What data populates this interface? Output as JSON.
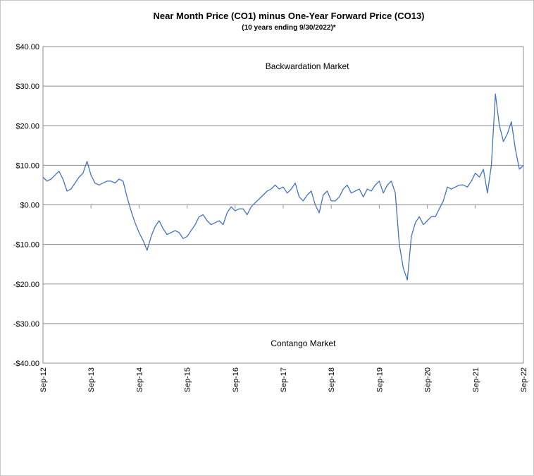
{
  "chart_data": {
    "type": "line",
    "title": "Near Month Price (CO1) minus One-Year Forward Price (CO13)",
    "subtitle": "(10 years ending  9/30/2022)*",
    "xlabel": "",
    "ylabel": "",
    "ylim": [
      -40,
      40
    ],
    "y_ticks": [
      40,
      30,
      20,
      10,
      0,
      -10,
      -20,
      -30,
      -40
    ],
    "y_tick_labels": [
      "$40.00",
      "$30.00",
      "$20.00",
      "$10.00",
      "$0.00",
      "-$10.00",
      "-$20.00",
      "-$30.00",
      "-$40.00"
    ],
    "x_range": [
      "2012-09",
      "2022-09"
    ],
    "x_ticks": [
      "2012-09",
      "2013-09",
      "2014-09",
      "2015-09",
      "2016-09",
      "2017-09",
      "2018-09",
      "2019-09",
      "2020-09",
      "2021-09",
      "2022-09"
    ],
    "x_tick_labels": [
      "Sep-12",
      "Sep-13",
      "Sep-14",
      "Sep-15",
      "Sep-16",
      "Sep-17",
      "Sep-18",
      "Sep-19",
      "Sep-20",
      "Sep-21",
      "Sep-22"
    ],
    "grid": true,
    "annotations": [
      {
        "text": "Backwardation Market",
        "x": "2018-03",
        "y": 35
      },
      {
        "text": "Contango Market",
        "x": "2018-02",
        "y": -35
      }
    ],
    "series": [
      {
        "color": "#4472c4",
        "x": [
          "2012-09",
          "2012-10",
          "2012-11",
          "2012-12",
          "2013-01",
          "2013-02",
          "2013-03",
          "2013-04",
          "2013-05",
          "2013-06",
          "2013-07",
          "2013-08",
          "2013-09",
          "2013-10",
          "2013-11",
          "2013-12",
          "2014-01",
          "2014-02",
          "2014-03",
          "2014-04",
          "2014-05",
          "2014-06",
          "2014-07",
          "2014-08",
          "2014-09",
          "2014-10",
          "2014-11",
          "2014-12",
          "2015-01",
          "2015-02",
          "2015-03",
          "2015-04",
          "2015-05",
          "2015-06",
          "2015-07",
          "2015-08",
          "2015-09",
          "2015-10",
          "2015-11",
          "2015-12",
          "2016-01",
          "2016-02",
          "2016-03",
          "2016-04",
          "2016-05",
          "2016-06",
          "2016-07",
          "2016-08",
          "2016-09",
          "2016-10",
          "2016-11",
          "2016-12",
          "2017-01",
          "2017-02",
          "2017-03",
          "2017-04",
          "2017-05",
          "2017-06",
          "2017-07",
          "2017-08",
          "2017-09",
          "2017-10",
          "2017-11",
          "2017-12",
          "2018-01",
          "2018-02",
          "2018-03",
          "2018-04",
          "2018-05",
          "2018-06",
          "2018-07",
          "2018-08",
          "2018-09",
          "2018-10",
          "2018-11",
          "2018-12",
          "2019-01",
          "2019-02",
          "2019-03",
          "2019-04",
          "2019-05",
          "2019-06",
          "2019-07",
          "2019-08",
          "2019-09",
          "2019-10",
          "2019-11",
          "2019-12",
          "2020-01",
          "2020-02",
          "2020-03",
          "2020-04",
          "2020-05",
          "2020-06",
          "2020-07",
          "2020-08",
          "2020-09",
          "2020-10",
          "2020-11",
          "2020-12",
          "2021-01",
          "2021-02",
          "2021-03",
          "2021-04",
          "2021-05",
          "2021-06",
          "2021-07",
          "2021-08",
          "2021-09",
          "2021-10",
          "2021-11",
          "2021-12",
          "2022-01",
          "2022-02",
          "2022-03",
          "2022-04",
          "2022-05",
          "2022-06",
          "2022-07",
          "2022-08",
          "2022-09"
        ],
        "values": [
          7.0,
          6.0,
          6.5,
          7.5,
          8.5,
          6.5,
          3.5,
          4.0,
          5.5,
          7.0,
          8.0,
          11.0,
          7.5,
          5.5,
          5.0,
          5.5,
          6.0,
          6.0,
          5.5,
          6.5,
          6.0,
          2.0,
          -1.5,
          -4.5,
          -7.0,
          -9.0,
          -11.5,
          -8.0,
          -5.5,
          -4.0,
          -6.0,
          -7.5,
          -7.0,
          -6.5,
          -7.0,
          -8.5,
          -8.0,
          -6.5,
          -5.0,
          -3.0,
          -2.5,
          -4.0,
          -5.0,
          -4.5,
          -4.0,
          -5.0,
          -2.0,
          -0.5,
          -1.5,
          -1.0,
          -1.0,
          -2.5,
          -0.5,
          0.5,
          1.5,
          2.5,
          3.5,
          4.0,
          5.0,
          4.0,
          4.5,
          3.0,
          4.0,
          5.5,
          2.0,
          1.0,
          2.5,
          3.5,
          0.0,
          -2.0,
          2.5,
          3.5,
          1.0,
          1.0,
          2.0,
          4.0,
          5.0,
          3.0,
          3.5,
          4.0,
          2.0,
          4.0,
          3.5,
          5.0,
          6.0,
          3.0,
          5.0,
          6.0,
          3.0,
          -10.0,
          -16.0,
          -19.0,
          -8.0,
          -4.5,
          -3.0,
          -5.0,
          -4.0,
          -3.0,
          -3.0,
          -1.0,
          1.0,
          4.5,
          4.0,
          4.5,
          5.0,
          5.0,
          4.5,
          6.0,
          8.0,
          7.0,
          9.0,
          3.0,
          10.0,
          28.0,
          20.0,
          16.0,
          18.0,
          21.0,
          14.0,
          9.0,
          10.0
        ]
      }
    ]
  }
}
